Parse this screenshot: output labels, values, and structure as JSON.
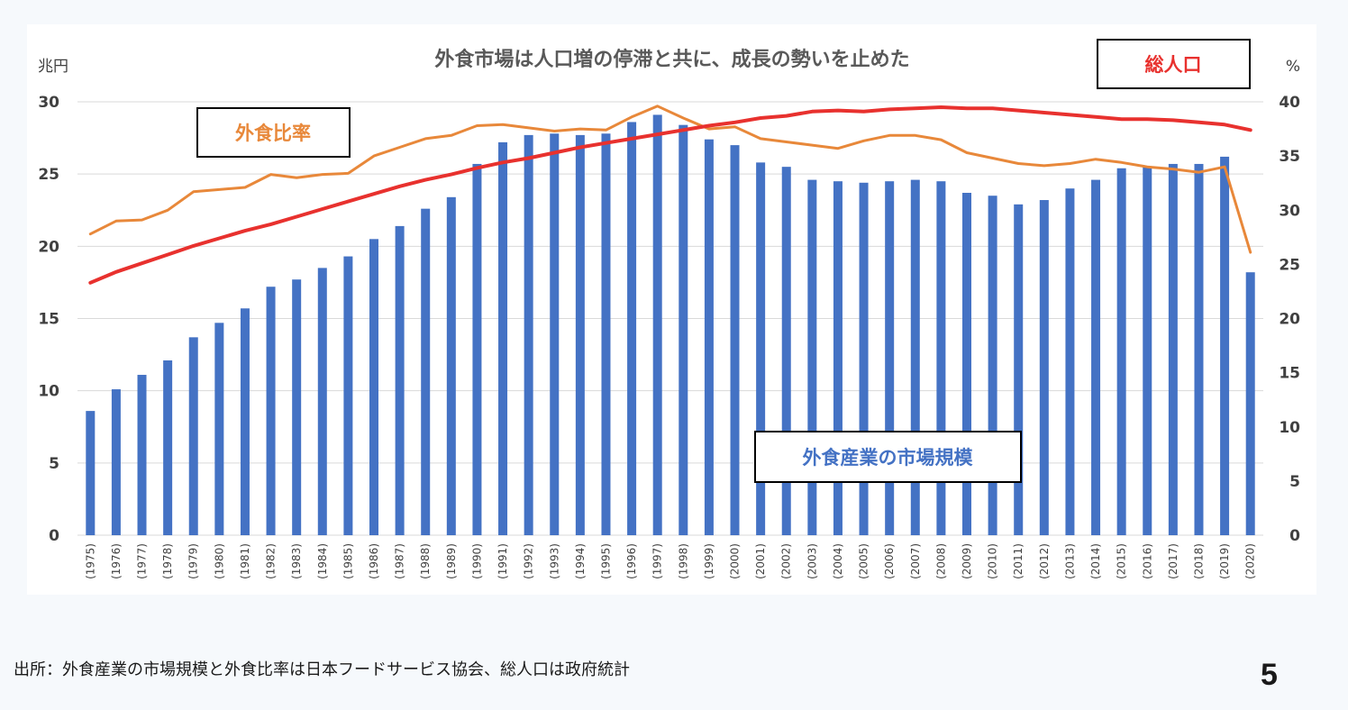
{
  "chart_data": {
    "type": "bar",
    "title": "外食市場は人口増の停滞と共に、成長の勢いを止めた",
    "y_left_label": "兆円",
    "y_right_label": "%",
    "y_left_lim": [
      0,
      30
    ],
    "y_left_ticks": [
      "0",
      "5",
      "10",
      "15",
      "20",
      "25",
      "30"
    ],
    "y_right_lim": [
      0,
      40
    ],
    "y_right_ticks": [
      "0",
      "5",
      "10",
      "15",
      "20",
      "25",
      "30",
      "35",
      "40"
    ],
    "grid": true,
    "categories": [
      "(1975)",
      "(1976)",
      "(1977)",
      "(1978)",
      "(1979)",
      "(1980)",
      "(1981)",
      "(1982)",
      "(1983)",
      "(1984)",
      "(1985)",
      "(1986)",
      "(1987)",
      "(1988)",
      "(1989)",
      "(1990)",
      "(1991)",
      "(1992)",
      "(1993)",
      "(1994)",
      "(1995)",
      "(1996)",
      "(1997)",
      "(1998)",
      "(1999)",
      "(2000)",
      "(2001)",
      "(2002)",
      "(2003)",
      "(2004)",
      "(2005)",
      "(2006)",
      "(2007)",
      "(2008)",
      "(2009)",
      "(2010)",
      "(2011)",
      "(2012)",
      "(2013)",
      "(2014)",
      "(2015)",
      "(2016)",
      "(2017)",
      "(2018)",
      "(2019)",
      "(2020)"
    ],
    "series": [
      {
        "name": "外食産業の市場規模",
        "type": "bar",
        "axis": "left",
        "color": "#4472c4",
        "values": [
          8.6,
          10.1,
          11.1,
          12.1,
          13.7,
          14.7,
          15.7,
          17.2,
          17.7,
          18.5,
          19.3,
          20.5,
          21.4,
          22.6,
          23.4,
          25.7,
          27.2,
          27.7,
          27.8,
          27.7,
          27.8,
          28.6,
          29.1,
          28.4,
          27.4,
          27.0,
          25.8,
          25.5,
          24.6,
          24.5,
          24.4,
          24.5,
          24.6,
          24.5,
          23.7,
          23.5,
          22.9,
          23.2,
          24.0,
          24.6,
          25.4,
          25.5,
          25.7,
          25.7,
          26.2,
          18.2
        ]
      },
      {
        "name": "外食比率",
        "type": "line",
        "axis": "right",
        "color": "#e8883a",
        "values": [
          27.8,
          29.0,
          29.1,
          30.0,
          31.7,
          31.9,
          32.1,
          33.3,
          33.0,
          33.3,
          33.4,
          35.0,
          35.8,
          36.6,
          36.9,
          37.8,
          37.9,
          37.6,
          37.3,
          37.5,
          37.4,
          38.6,
          39.6,
          38.5,
          37.5,
          37.7,
          36.6,
          36.3,
          36.0,
          35.7,
          36.4,
          36.9,
          36.9,
          36.5,
          35.3,
          34.8,
          34.3,
          34.1,
          34.3,
          34.7,
          34.4,
          34.0,
          33.8,
          33.5,
          34.0,
          26.1
        ]
      },
      {
        "name": "総人口",
        "type": "line",
        "axis": "right",
        "color": "#e8312e",
        "values": [
          23.3,
          24.3,
          25.1,
          25.9,
          26.7,
          27.4,
          28.1,
          28.7,
          29.4,
          30.1,
          30.8,
          31.5,
          32.2,
          32.8,
          33.3,
          33.9,
          34.4,
          34.8,
          35.3,
          35.8,
          36.2,
          36.6,
          37.0,
          37.4,
          37.8,
          38.1,
          38.5,
          38.7,
          39.1,
          39.2,
          39.1,
          39.3,
          39.4,
          39.5,
          39.4,
          39.4,
          39.2,
          39.0,
          38.8,
          38.6,
          38.4,
          38.4,
          38.3,
          38.1,
          37.9,
          37.4
        ]
      }
    ],
    "callouts": {
      "food_ratio": "外食比率",
      "population": "総人口",
      "market_size": "外食産業の市場規模"
    }
  },
  "footer": {
    "source": "出所：外食産業の市場規模と外食比率は日本フードサービス協会、総人口は政府統計",
    "page_number": "5"
  }
}
